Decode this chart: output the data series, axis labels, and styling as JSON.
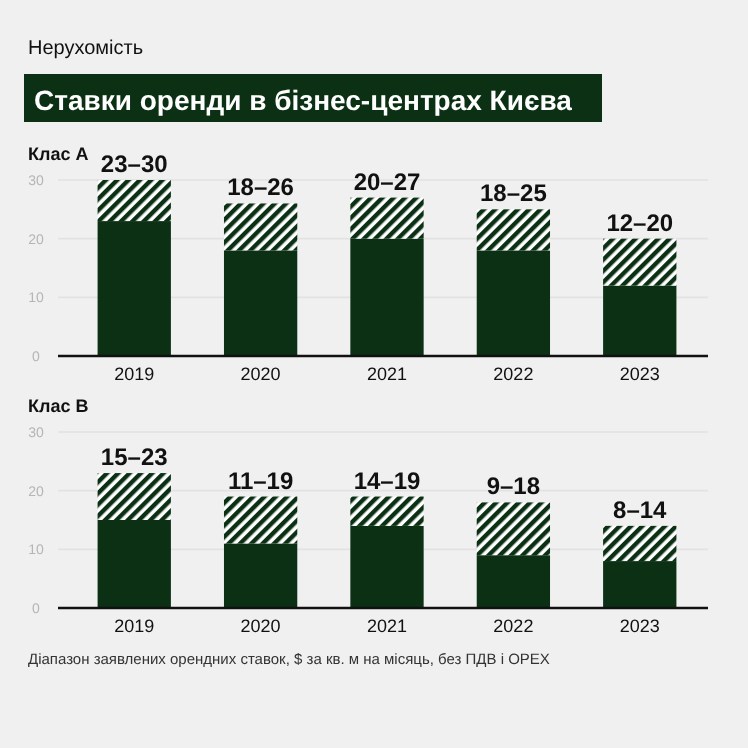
{
  "chart_data": [
    {
      "type": "bar",
      "title": "Ставки оренди в бізнес-центрах Києва",
      "subtitle": "Нерухомість",
      "ylabel": "Клас А",
      "categories": [
        "2019",
        "2020",
        "2021",
        "2022",
        "2023"
      ],
      "stacked": true,
      "series": [
        {
          "color": "#0b3014",
          "values": [
            23,
            18,
            20,
            18,
            12
          ]
        },
        {
          "color": "#0b3014",
          "values": [
            7,
            8,
            7,
            7,
            8
          ]
        }
      ],
      "totals": [
        "23–30",
        "18–26",
        "20–27",
        "18–25",
        "12–20"
      ],
      "ylim": [
        0,
        30
      ],
      "yticks": [
        0,
        10,
        20,
        30
      ],
      "grid": "y"
    },
    {
      "type": "bar",
      "ylabel": "Клас В",
      "categories": [
        "2019",
        "2020",
        "2021",
        "2022",
        "2023"
      ],
      "stacked": true,
      "series": [
        {
          "color": "#0b3014",
          "values": [
            15,
            11,
            14,
            9,
            8
          ]
        },
        {
          "color": "#0b3014",
          "values": [
            8,
            8,
            5,
            9,
            6
          ]
        }
      ],
      "totals": [
        "15–23",
        "11–19",
        "14–19",
        "9–18",
        "8–14"
      ],
      "ylim": [
        0,
        30
      ],
      "yticks": [
        0,
        10,
        20,
        30
      ],
      "grid": "y",
      "annotations": [
        "Діапазон заявлених орендних ставок, $ за кв. м на місяць, без ПДВ і OPEX"
      ]
    }
  ]
}
